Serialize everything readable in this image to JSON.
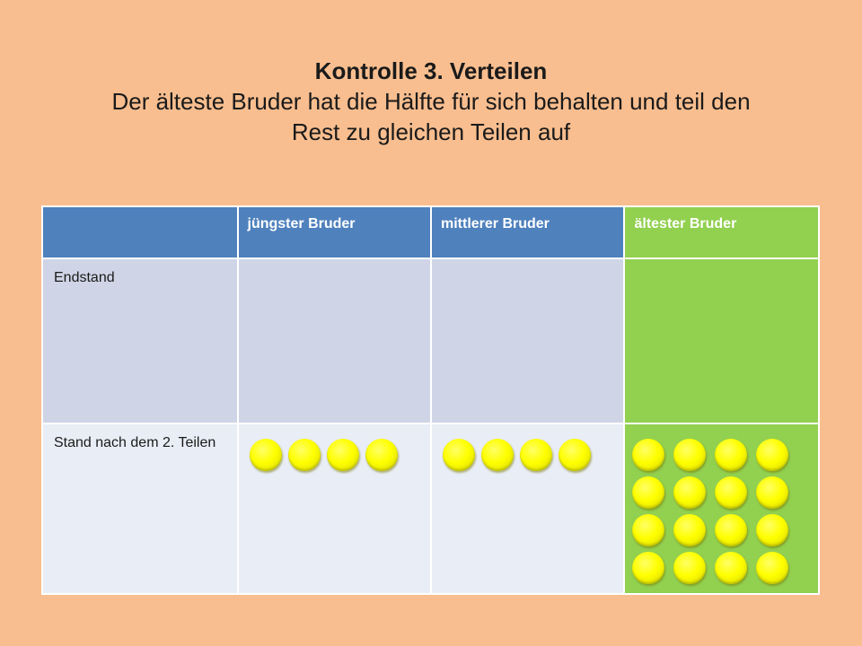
{
  "title": {
    "heading": "Kontrolle 3. Verteilen",
    "subtitle_line1": "Der älteste Bruder hat die Hälfte für sich behalten und teil den",
    "subtitle_line2": "Rest zu gleichen Teilen auf"
  },
  "table": {
    "headers": [
      "",
      "jüngster Bruder",
      "mittlerer Bruder",
      "ältester Bruder"
    ],
    "rows": [
      {
        "label": "Endstand",
        "coins": [
          0,
          0,
          0
        ]
      },
      {
        "label": "Stand nach dem 2. Teilen",
        "coins": [
          4,
          4,
          16
        ]
      }
    ]
  },
  "colors": {
    "background": "#f9be8f",
    "header_blue": "#4f81bd",
    "highlight_green": "#92d050",
    "row_dark": "#cfd5e6",
    "row_light": "#e9edf5",
    "coin_yellow": "#ffff00"
  }
}
